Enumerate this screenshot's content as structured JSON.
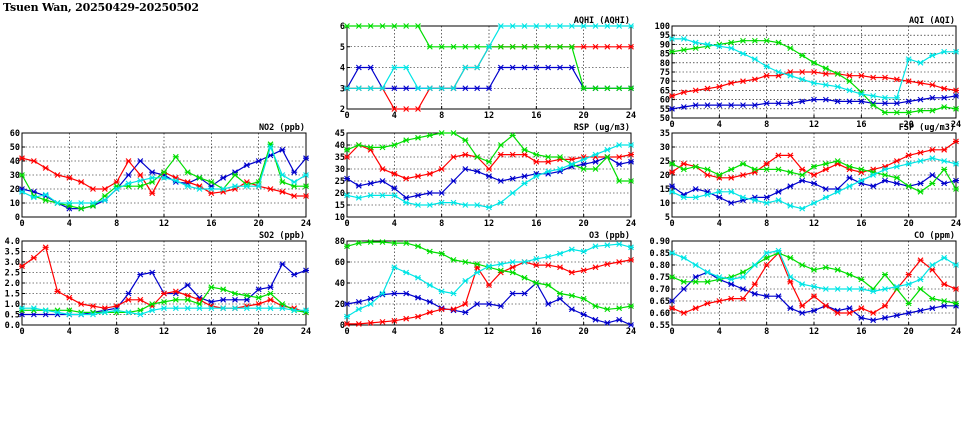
{
  "title": "Tsuen Wan, 20250429-20250502",
  "colors": {
    "Day1": "#0000cc",
    "Day2": "#ff0000",
    "Day3": "#00dd00",
    "Day4": "#00e5e5"
  },
  "chart_data": [
    {
      "id": "aqhi",
      "type": "line",
      "title": "AQHI (AQHI)",
      "xlim": [
        0,
        24
      ],
      "xticks": [
        0,
        4,
        8,
        12,
        16,
        20,
        24
      ],
      "ylim": [
        2,
        6
      ],
      "yticks": [
        2,
        3,
        4,
        5,
        6
      ],
      "grid": true,
      "series": [
        {
          "color": "blue",
          "values": [
            3,
            4,
            4,
            3,
            3,
            3,
            3,
            3,
            3,
            3,
            3,
            3,
            3,
            4,
            4,
            4,
            4,
            4,
            4,
            4,
            3,
            3,
            3,
            3,
            3
          ]
        },
        {
          "color": "red",
          "values": [
            3,
            3,
            3,
            3,
            2,
            2,
            2,
            3,
            3,
            3,
            4,
            4,
            5,
            5,
            5,
            5,
            5,
            5,
            5,
            5,
            5,
            5,
            5,
            5,
            5
          ]
        },
        {
          "color": "green",
          "values": [
            6,
            6,
            6,
            6,
            6,
            6,
            6,
            5,
            5,
            5,
            5,
            5,
            5,
            5,
            5,
            5,
            5,
            5,
            5,
            5,
            3,
            3,
            3,
            3,
            3
          ]
        },
        {
          "color": "cyan",
          "values": [
            3,
            3,
            3,
            3,
            4,
            4,
            3,
            3,
            3,
            3,
            4,
            4,
            5,
            6,
            6,
            6,
            6,
            6,
            6,
            6,
            6,
            6,
            6,
            6,
            6
          ]
        }
      ]
    },
    {
      "id": "aqi",
      "type": "line",
      "title": "AQI (AQI)",
      "xlim": [
        0,
        24
      ],
      "xticks": [
        0,
        4,
        8,
        12,
        16,
        20,
        24
      ],
      "ylim": [
        50,
        100
      ],
      "yticks": [
        50,
        55,
        60,
        65,
        70,
        75,
        80,
        85,
        90,
        95,
        100
      ],
      "grid": true,
      "series": [
        {
          "color": "blue",
          "values": [
            55,
            56,
            57,
            57,
            57,
            57,
            57,
            57,
            58,
            58,
            58,
            59,
            60,
            60,
            59,
            59,
            59,
            58,
            58,
            58,
            59,
            60,
            61,
            61,
            62
          ]
        },
        {
          "color": "red",
          "values": [
            62,
            64,
            65,
            66,
            67,
            69,
            70,
            71,
            73,
            73,
            75,
            75,
            75,
            74,
            74,
            73,
            73,
            72,
            72,
            71,
            70,
            69,
            68,
            66,
            65
          ]
        },
        {
          "color": "green",
          "values": [
            86,
            87,
            88,
            89,
            90,
            91,
            92,
            92,
            92,
            91,
            88,
            84,
            80,
            77,
            74,
            70,
            64,
            57,
            53,
            53,
            53,
            54,
            54,
            56,
            55
          ]
        },
        {
          "color": "cyan",
          "values": [
            93,
            93,
            91,
            90,
            89,
            88,
            85,
            82,
            78,
            75,
            73,
            71,
            69,
            68,
            67,
            65,
            63,
            62,
            61,
            61,
            82,
            80,
            84,
            86,
            86
          ]
        }
      ]
    },
    {
      "id": "no2",
      "type": "line",
      "title": "NO2 (ppb)",
      "xlim": [
        0,
        24
      ],
      "xticks": [
        0,
        4,
        8,
        12,
        16,
        20,
        24
      ],
      "ylim": [
        0,
        60
      ],
      "yticks": [
        0,
        10,
        20,
        30,
        40,
        50,
        60
      ],
      "grid": true,
      "series": [
        {
          "color": "blue",
          "values": [
            20,
            18,
            15,
            10,
            6,
            6,
            8,
            12,
            20,
            30,
            40,
            32,
            30,
            25,
            24,
            28,
            22,
            28,
            32,
            37,
            40,
            44,
            48,
            32,
            42
          ]
        },
        {
          "color": "red",
          "values": [
            42,
            40,
            35,
            30,
            28,
            25,
            20,
            20,
            25,
            40,
            30,
            17,
            32,
            28,
            25,
            22,
            17,
            18,
            20,
            25,
            22,
            20,
            18,
            15,
            15
          ]
        },
        {
          "color": "green",
          "values": [
            30,
            15,
            12,
            10,
            8,
            6,
            8,
            15,
            22,
            22,
            22,
            25,
            32,
            43,
            32,
            28,
            25,
            20,
            30,
            23,
            25,
            52,
            25,
            22,
            22
          ]
        },
        {
          "color": "cyan",
          "values": [
            18,
            14,
            16,
            10,
            10,
            10,
            10,
            12,
            20,
            24,
            26,
            28,
            28,
            26,
            22,
            20,
            20,
            20,
            22,
            22,
            22,
            50,
            30,
            25,
            30
          ]
        }
      ]
    },
    {
      "id": "rsp",
      "type": "line",
      "title": "RSP (ug/m3)",
      "xlim": [
        0,
        24
      ],
      "xticks": [
        0,
        4,
        8,
        12,
        16,
        20,
        24
      ],
      "ylim": [
        10,
        45
      ],
      "yticks": [
        10,
        15,
        20,
        25,
        30,
        35,
        40,
        45
      ],
      "grid": true,
      "series": [
        {
          "color": "blue",
          "values": [
            26,
            23,
            24,
            25,
            22,
            18,
            19,
            20,
            20,
            25,
            30,
            29,
            27,
            25,
            26,
            27,
            28,
            28,
            29,
            31,
            32,
            33,
            35,
            32,
            33
          ]
        },
        {
          "color": "red",
          "values": [
            35,
            40,
            38,
            30,
            28,
            26,
            27,
            28,
            30,
            35,
            36,
            35,
            30,
            36,
            36,
            36,
            33,
            33,
            34,
            34,
            35,
            35,
            35,
            35,
            36
          ]
        },
        {
          "color": "green",
          "values": [
            38,
            40,
            39,
            39,
            40,
            42,
            43,
            44,
            45,
            45,
            42,
            35,
            33,
            40,
            44,
            38,
            36,
            35,
            35,
            32,
            30,
            30,
            35,
            25,
            25
          ]
        },
        {
          "color": "cyan",
          "values": [
            19,
            18,
            19,
            19,
            19,
            16,
            15,
            15,
            16,
            16,
            15,
            15,
            14,
            16,
            20,
            24,
            27,
            29,
            30,
            32,
            34,
            36,
            38,
            40,
            40
          ]
        }
      ]
    },
    {
      "id": "fsp",
      "type": "line",
      "title": "FSP (ug/m3)",
      "xlim": [
        0,
        24
      ],
      "xticks": [
        0,
        4,
        8,
        12,
        16,
        20,
        24
      ],
      "ylim": [
        5,
        35
      ],
      "yticks": [
        5,
        10,
        15,
        20,
        25,
        30,
        35
      ],
      "grid": true,
      "series": [
        {
          "color": "blue",
          "values": [
            16,
            13,
            15,
            14,
            12,
            10,
            11,
            12,
            12,
            14,
            16,
            18,
            17,
            15,
            15,
            19,
            17,
            16,
            18,
            17,
            16,
            17,
            20,
            17,
            18
          ]
        },
        {
          "color": "red",
          "values": [
            21,
            24,
            23,
            20,
            19,
            19,
            20,
            21,
            24,
            27,
            27,
            22,
            20,
            22,
            24,
            22,
            21,
            22,
            23,
            25,
            27,
            28,
            29,
            29,
            32
          ]
        },
        {
          "color": "green",
          "values": [
            24,
            22,
            23,
            22,
            20,
            22,
            24,
            22,
            22,
            22,
            21,
            20,
            23,
            24,
            25,
            23,
            22,
            21,
            20,
            19,
            16,
            14,
            17,
            22,
            15
          ]
        },
        {
          "color": "cyan",
          "values": [
            14,
            12,
            12,
            13,
            14,
            14,
            12,
            11,
            10,
            11,
            9,
            8,
            10,
            12,
            14,
            16,
            18,
            20,
            22,
            23,
            24,
            25,
            26,
            25,
            24
          ]
        }
      ]
    },
    {
      "id": "so2",
      "type": "line",
      "title": "SO2 (ppb)",
      "xlim": [
        0,
        24
      ],
      "xticks": [
        0,
        4,
        8,
        12,
        16,
        20,
        24
      ],
      "ylim": [
        0,
        4
      ],
      "yticks": [
        0.0,
        0.5,
        1.0,
        1.5,
        2.0,
        2.5,
        3.0,
        3.5,
        4.0
      ],
      "grid": true,
      "series": [
        {
          "color": "blue",
          "values": [
            0.5,
            0.5,
            0.5,
            0.5,
            0.5,
            0.5,
            0.6,
            0.7,
            0.8,
            1.5,
            2.4,
            2.5,
            1.5,
            1.5,
            1.9,
            1.3,
            1.1,
            1.2,
            1.2,
            1.2,
            1.7,
            1.8,
            2.9,
            2.4,
            2.6
          ]
        },
        {
          "color": "red",
          "values": [
            2.8,
            3.2,
            3.7,
            1.6,
            1.3,
            1.0,
            0.9,
            0.8,
            0.9,
            1.2,
            1.2,
            0.9,
            1.5,
            1.6,
            1.4,
            1.2,
            0.9,
            0.8,
            0.8,
            0.9,
            1.0,
            1.2,
            0.9,
            0.8,
            0.6
          ]
        },
        {
          "color": "green",
          "values": [
            0.7,
            0.7,
            0.7,
            0.7,
            0.7,
            0.6,
            0.6,
            0.6,
            0.6,
            0.6,
            0.7,
            1.0,
            1.1,
            1.2,
            1.2,
            1.0,
            1.8,
            1.7,
            1.5,
            1.4,
            1.3,
            1.5,
            1.0,
            0.7,
            0.6
          ]
        },
        {
          "color": "cyan",
          "values": [
            0.8,
            0.8,
            0.7,
            0.6,
            0.5,
            0.5,
            0.5,
            0.6,
            0.7,
            0.6,
            0.5,
            0.7,
            0.8,
            0.8,
            0.8,
            0.8,
            0.8,
            0.8,
            0.8,
            0.8,
            0.8,
            0.8,
            0.8,
            0.7,
            0.7
          ]
        }
      ]
    },
    {
      "id": "o3",
      "type": "line",
      "title": "O3 (ppb)",
      "xlim": [
        0,
        24
      ],
      "xticks": [
        0,
        4,
        8,
        12,
        16,
        20,
        24
      ],
      "ylim": [
        0,
        80
      ],
      "yticks": [
        0,
        20,
        40,
        60,
        80
      ],
      "grid": true,
      "series": [
        {
          "color": "blue",
          "values": [
            20,
            22,
            25,
            29,
            30,
            30,
            26,
            22,
            16,
            14,
            12,
            20,
            20,
            18,
            30,
            30,
            40,
            20,
            25,
            15,
            10,
            5,
            2,
            5,
            0
          ]
        },
        {
          "color": "red",
          "values": [
            1,
            1,
            2,
            3,
            4,
            6,
            8,
            12,
            15,
            15,
            20,
            55,
            38,
            50,
            55,
            60,
            57,
            57,
            55,
            50,
            52,
            55,
            58,
            60,
            62
          ]
        },
        {
          "color": "green",
          "values": [
            75,
            78,
            79,
            79,
            78,
            78,
            75,
            70,
            68,
            62,
            60,
            58,
            55,
            52,
            50,
            45,
            40,
            38,
            30,
            28,
            25,
            18,
            15,
            16,
            18
          ]
        },
        {
          "color": "cyan",
          "values": [
            8,
            15,
            20,
            30,
            55,
            50,
            45,
            38,
            32,
            30,
            42,
            50,
            56,
            58,
            60,
            60,
            63,
            65,
            68,
            72,
            70,
            75,
            76,
            77,
            74
          ]
        }
      ]
    },
    {
      "id": "co",
      "type": "line",
      "title": "CO (ppm)",
      "xlim": [
        0,
        24
      ],
      "xticks": [
        0,
        4,
        8,
        12,
        16,
        20,
        24
      ],
      "ylim": [
        0.55,
        0.9
      ],
      "yticks": [
        0.55,
        0.6,
        0.65,
        0.7,
        0.75,
        0.8,
        0.85,
        0.9
      ],
      "grid": true,
      "series": [
        {
          "color": "blue",
          "values": [
            0.65,
            0.7,
            0.75,
            0.77,
            0.74,
            0.72,
            0.7,
            0.68,
            0.67,
            0.67,
            0.62,
            0.6,
            0.61,
            0.63,
            0.61,
            0.62,
            0.58,
            0.57,
            0.58,
            0.59,
            0.6,
            0.61,
            0.62,
            0.63,
            0.63
          ]
        },
        {
          "color": "red",
          "values": [
            0.62,
            0.6,
            0.62,
            0.64,
            0.65,
            0.66,
            0.66,
            0.72,
            0.8,
            0.85,
            0.73,
            0.63,
            0.67,
            0.63,
            0.6,
            0.6,
            0.62,
            0.6,
            0.63,
            0.7,
            0.76,
            0.82,
            0.78,
            0.72,
            0.7
          ]
        },
        {
          "color": "green",
          "values": [
            0.75,
            0.73,
            0.73,
            0.73,
            0.74,
            0.75,
            0.77,
            0.8,
            0.83,
            0.85,
            0.83,
            0.8,
            0.78,
            0.79,
            0.78,
            0.76,
            0.74,
            0.7,
            0.76,
            0.7,
            0.64,
            0.7,
            0.66,
            0.65,
            0.64
          ]
        },
        {
          "color": "cyan",
          "values": [
            0.85,
            0.83,
            0.8,
            0.77,
            0.75,
            0.74,
            0.75,
            0.8,
            0.85,
            0.86,
            0.75,
            0.72,
            0.71,
            0.7,
            0.7,
            0.7,
            0.7,
            0.69,
            0.7,
            0.71,
            0.72,
            0.74,
            0.8,
            0.83,
            0.8
          ]
        }
      ]
    }
  ]
}
